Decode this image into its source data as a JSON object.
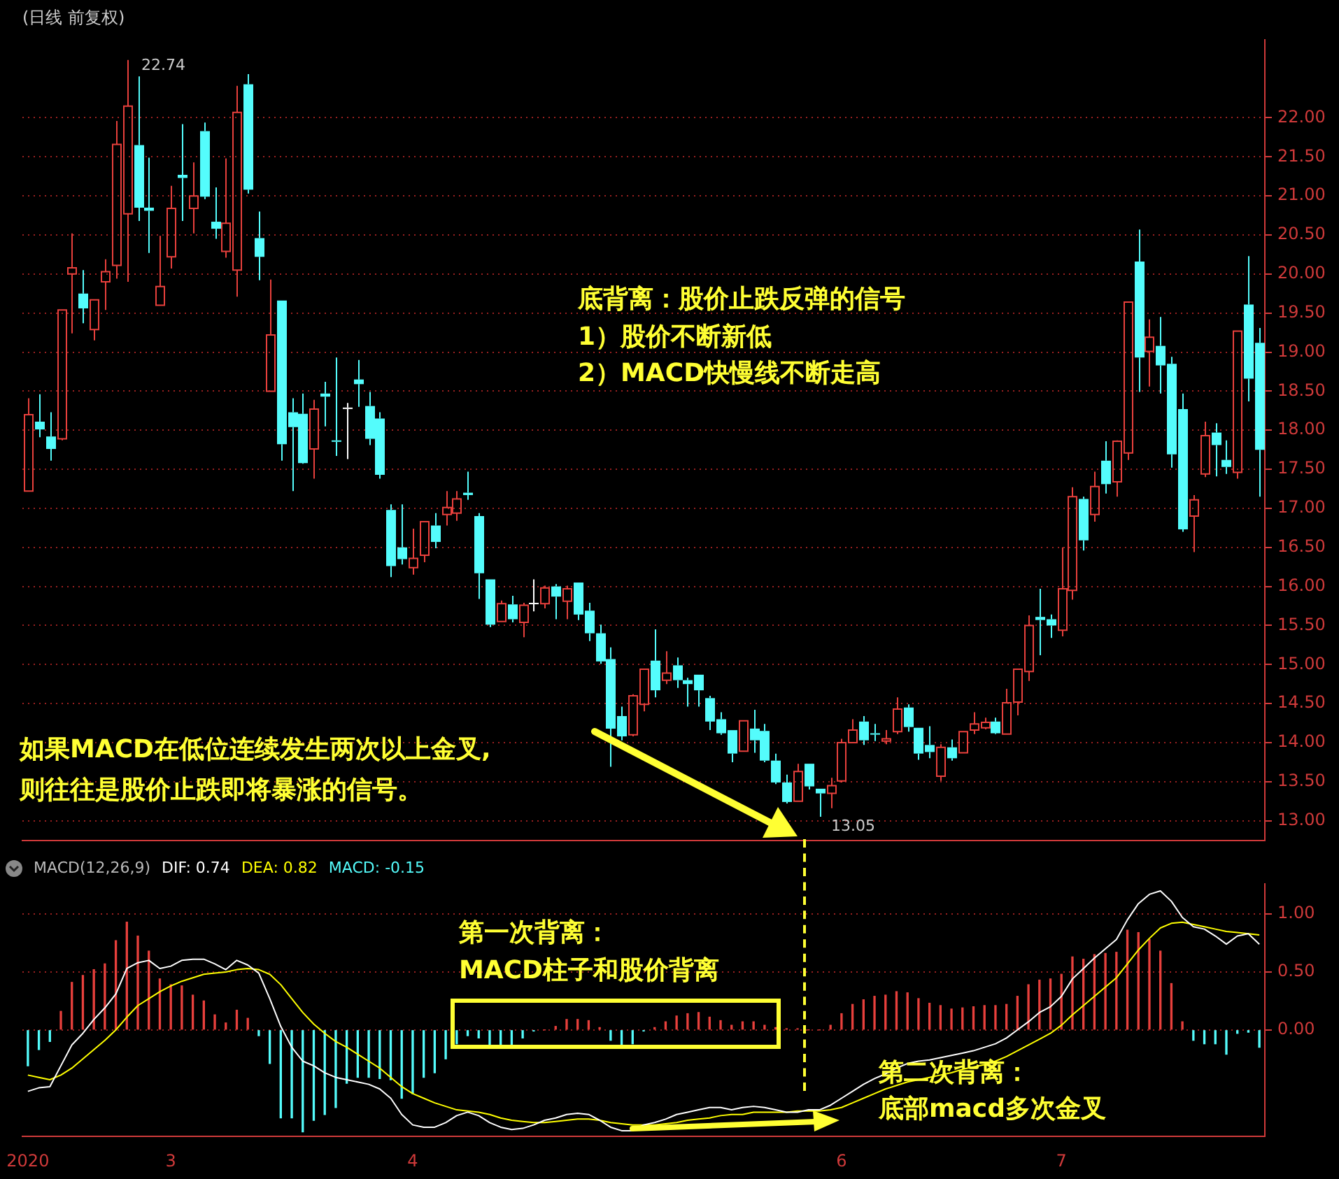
{
  "chart_data": [
    {
      "type": "candlestick",
      "title": "(日线 前复权)",
      "categories": [
        "2020",
        null,
        null,
        null,
        null,
        null,
        null,
        null,
        null,
        null,
        null,
        null,
        null,
        "3",
        null,
        null,
        null,
        null,
        null,
        null,
        null,
        null,
        null,
        null,
        null,
        null,
        null,
        null,
        null,
        null,
        null,
        null,
        null,
        null,
        null,
        "4",
        null,
        null,
        null,
        null,
        null,
        null,
        null,
        null,
        null,
        null,
        null,
        null,
        null,
        null,
        null,
        null,
        null,
        null,
        null,
        null,
        null,
        null,
        null,
        null,
        null,
        null,
        null,
        null,
        null,
        null,
        null,
        null,
        null,
        null,
        null,
        null,
        null,
        null,
        "6",
        null,
        null,
        null,
        null,
        null,
        null,
        null,
        null,
        null,
        null,
        null,
        null,
        null,
        null,
        null,
        null,
        null,
        null,
        null,
        "7",
        null,
        null,
        null,
        null,
        null,
        null,
        null,
        null,
        null,
        null,
        null,
        null,
        null,
        null,
        null,
        null,
        null,
        null
      ],
      "ohlc": [
        [
          17.22,
          18.41,
          17.22,
          18.2
        ],
        [
          18.11,
          18.46,
          17.91,
          18.01
        ],
        [
          17.92,
          18.23,
          17.61,
          17.76
        ],
        [
          17.89,
          19.54,
          17.87,
          19.54
        ],
        [
          20.0,
          20.52,
          19.24,
          20.08
        ],
        [
          19.75,
          20.05,
          19.37,
          19.56
        ],
        [
          19.29,
          19.67,
          19.15,
          19.67
        ],
        [
          19.9,
          20.19,
          19.54,
          20.03
        ],
        [
          20.11,
          21.96,
          19.94,
          21.66
        ],
        [
          20.77,
          22.74,
          19.9,
          22.15
        ],
        [
          21.65,
          22.53,
          20.68,
          20.85
        ],
        [
          20.85,
          21.49,
          20.27,
          20.81
        ],
        [
          19.6,
          20.49,
          19.6,
          19.84
        ],
        [
          20.22,
          21.13,
          20.07,
          20.84
        ],
        [
          21.27,
          21.92,
          20.68,
          21.23
        ],
        [
          20.84,
          21.43,
          20.52,
          21.0
        ],
        [
          21.83,
          21.94,
          20.96,
          20.99
        ],
        [
          20.67,
          21.11,
          20.45,
          20.58
        ],
        [
          20.29,
          21.48,
          20.21,
          20.65
        ],
        [
          20.05,
          22.41,
          19.71,
          22.07
        ],
        [
          22.43,
          22.56,
          21.03,
          21.08
        ],
        [
          20.46,
          20.8,
          19.92,
          20.22
        ],
        [
          18.5,
          19.93,
          18.5,
          19.22
        ],
        [
          19.66,
          19.66,
          17.61,
          17.82
        ],
        [
          18.23,
          18.41,
          17.22,
          18.04
        ],
        [
          18.21,
          18.47,
          17.57,
          17.58
        ],
        [
          17.76,
          18.39,
          17.38,
          18.27
        ],
        [
          18.47,
          18.62,
          18.05,
          18.43
        ],
        [
          17.87,
          18.93,
          17.67,
          17.86
        ],
        [
          18.29,
          18.35,
          17.63,
          18.29
        ],
        [
          18.65,
          18.9,
          18.3,
          18.59
        ],
        [
          18.31,
          18.49,
          17.81,
          17.89
        ],
        [
          18.15,
          18.23,
          17.38,
          17.43
        ],
        [
          16.98,
          17.05,
          16.12,
          16.26
        ],
        [
          16.5,
          17.05,
          16.28,
          16.35
        ],
        [
          16.24,
          16.74,
          16.15,
          16.36
        ],
        [
          16.4,
          16.83,
          16.31,
          16.83
        ],
        [
          16.78,
          16.94,
          16.49,
          16.57
        ],
        [
          16.92,
          17.22,
          16.78,
          17.01
        ],
        [
          16.94,
          17.22,
          16.84,
          17.12
        ],
        [
          17.2,
          17.47,
          17.11,
          17.17
        ],
        [
          16.9,
          16.94,
          15.84,
          16.17
        ],
        [
          16.09,
          16.09,
          15.48,
          15.51
        ],
        [
          15.55,
          15.82,
          15.55,
          15.78
        ],
        [
          15.77,
          15.88,
          15.54,
          15.58
        ],
        [
          15.54,
          15.79,
          15.35,
          15.76
        ],
        [
          15.79,
          16.09,
          15.68,
          15.79
        ],
        [
          15.78,
          16.01,
          15.72,
          15.98
        ],
        [
          16.0,
          16.03,
          15.58,
          15.87
        ],
        [
          15.81,
          16.01,
          15.58,
          15.97
        ],
        [
          16.05,
          16.05,
          15.57,
          15.64
        ],
        [
          15.69,
          15.79,
          15.3,
          15.4
        ],
        [
          15.4,
          15.51,
          15.01,
          15.04
        ],
        [
          15.07,
          15.22,
          13.69,
          14.18
        ],
        [
          14.34,
          14.46,
          14.03,
          14.08
        ],
        [
          14.1,
          14.62,
          14.08,
          14.6
        ],
        [
          14.49,
          14.94,
          14.4,
          14.94
        ],
        [
          15.05,
          15.45,
          14.58,
          14.67
        ],
        [
          14.8,
          15.17,
          14.75,
          14.89
        ],
        [
          14.99,
          15.09,
          14.7,
          14.8
        ],
        [
          14.8,
          14.83,
          14.46,
          14.75
        ],
        [
          14.87,
          14.87,
          14.46,
          14.67
        ],
        [
          14.57,
          14.6,
          14.16,
          14.27
        ],
        [
          14.3,
          14.39,
          14.1,
          14.12
        ],
        [
          14.16,
          14.16,
          13.75,
          13.86
        ],
        [
          13.89,
          14.28,
          13.89,
          14.28
        ],
        [
          14.18,
          14.42,
          13.87,
          14.03
        ],
        [
          14.15,
          14.24,
          13.75,
          13.77
        ],
        [
          13.77,
          13.86,
          13.47,
          13.49
        ],
        [
          13.49,
          13.59,
          13.22,
          13.24
        ],
        [
          13.25,
          13.73,
          13.25,
          13.63
        ],
        [
          13.73,
          13.73,
          13.4,
          13.44
        ],
        [
          13.41,
          13.41,
          13.05,
          13.35
        ],
        [
          13.35,
          13.55,
          13.16,
          13.45
        ],
        [
          13.51,
          14.05,
          13.49,
          14.0
        ],
        [
          14.0,
          14.3,
          13.99,
          14.16
        ],
        [
          14.27,
          14.34,
          13.97,
          14.03
        ],
        [
          14.12,
          14.24,
          14.02,
          14.11
        ],
        [
          14.02,
          14.16,
          13.98,
          14.05
        ],
        [
          14.14,
          14.58,
          14.11,
          14.43
        ],
        [
          14.45,
          14.49,
          14.14,
          14.2
        ],
        [
          14.19,
          14.19,
          13.78,
          13.86
        ],
        [
          13.97,
          14.21,
          13.8,
          13.88
        ],
        [
          13.57,
          13.98,
          13.51,
          13.94
        ],
        [
          13.94,
          14.04,
          13.77,
          13.8
        ],
        [
          13.87,
          14.14,
          13.87,
          14.14
        ],
        [
          14.16,
          14.39,
          14.11,
          14.24
        ],
        [
          14.19,
          14.32,
          14.17,
          14.26
        ],
        [
          14.27,
          14.32,
          14.11,
          14.12
        ],
        [
          14.11,
          14.69,
          14.11,
          14.51
        ],
        [
          14.52,
          14.94,
          14.35,
          14.94
        ],
        [
          14.91,
          15.63,
          14.79,
          15.5
        ],
        [
          15.61,
          15.97,
          15.12,
          15.57
        ],
        [
          15.58,
          15.64,
          15.34,
          15.5
        ],
        [
          15.44,
          16.5,
          15.36,
          15.97
        ],
        [
          15.95,
          17.27,
          15.83,
          17.15
        ],
        [
          17.12,
          17.15,
          16.46,
          16.59
        ],
        [
          16.92,
          17.47,
          16.83,
          17.28
        ],
        [
          17.61,
          17.86,
          17.19,
          17.31
        ],
        [
          17.34,
          17.87,
          17.15,
          17.86
        ],
        [
          17.71,
          19.64,
          17.62,
          19.64
        ],
        [
          20.16,
          20.57,
          18.49,
          18.93
        ],
        [
          19.01,
          19.42,
          18.56,
          19.19
        ],
        [
          19.08,
          19.45,
          18.47,
          18.83
        ],
        [
          18.85,
          18.94,
          17.52,
          17.69
        ],
        [
          18.27,
          18.47,
          16.7,
          16.73
        ],
        [
          16.9,
          17.17,
          16.44,
          17.11
        ],
        [
          17.44,
          18.11,
          17.4,
          17.93
        ],
        [
          17.97,
          18.09,
          17.41,
          17.81
        ],
        [
          17.62,
          17.87,
          17.44,
          17.53
        ],
        [
          17.46,
          19.27,
          17.38,
          19.27
        ],
        [
          19.61,
          20.23,
          18.37,
          18.66
        ],
        [
          19.12,
          19.31,
          17.15,
          17.75
        ]
      ],
      "colors": [
        "#e8403c",
        "#54fcfc",
        "#54fcfc",
        "#e8403c",
        "#e8403c",
        "#54fcfc",
        "#e8403c",
        "#e8403c",
        "#e8403c",
        "#e8403c",
        "#54fcfc",
        "#54fcfc",
        "#e8403c",
        "#e8403c",
        "#54fcfc",
        "#e8403c",
        "#54fcfc",
        "#54fcfc",
        "#e8403c",
        "#e8403c",
        "#54fcfc",
        "#54fcfc",
        "#e8403c",
        "#54fcfc",
        "#54fcfc",
        "#54fcfc",
        "#e8403c",
        "#54fcfc",
        "#54fcfc",
        "#ffffff",
        "#54fcfc",
        "#54fcfc",
        "#54fcfc",
        "#54fcfc",
        "#54fcfc",
        "#e8403c",
        "#e8403c",
        "#54fcfc",
        "#e8403c",
        "#e8403c",
        "#54fcfc",
        "#54fcfc",
        "#54fcfc",
        "#e8403c",
        "#54fcfc",
        "#e8403c",
        "#ffffff",
        "#e8403c",
        "#54fcfc",
        "#e8403c",
        "#54fcfc",
        "#54fcfc",
        "#54fcfc",
        "#54fcfc",
        "#54fcfc",
        "#e8403c",
        "#e8403c",
        "#54fcfc",
        "#e8403c",
        "#54fcfc",
        "#54fcfc",
        "#54fcfc",
        "#54fcfc",
        "#54fcfc",
        "#54fcfc",
        "#e8403c",
        "#54fcfc",
        "#54fcfc",
        "#54fcfc",
        "#54fcfc",
        "#e8403c",
        "#54fcfc",
        "#54fcfc",
        "#e8403c",
        "#e8403c",
        "#e8403c",
        "#54fcfc",
        "#54fcfc",
        "#e8403c",
        "#e8403c",
        "#54fcfc",
        "#54fcfc",
        "#54fcfc",
        "#e8403c",
        "#54fcfc",
        "#e8403c",
        "#e8403c",
        "#e8403c",
        "#54fcfc",
        "#e8403c",
        "#e8403c",
        "#e8403c",
        "#54fcfc",
        "#54fcfc",
        "#e8403c",
        "#e8403c",
        "#54fcfc",
        "#e8403c",
        "#54fcfc",
        "#e8403c",
        "#e8403c",
        "#54fcfc",
        "#e8403c",
        "#54fcfc",
        "#54fcfc",
        "#54fcfc",
        "#e8403c",
        "#e8403c",
        "#54fcfc",
        "#54fcfc",
        "#e8403c",
        "#54fcfc",
        "#54fcfc"
      ],
      "ylim": [
        12.75,
        23.0
      ],
      "yticks": [
        {
          "value": 13,
          "label": "13.00"
        },
        {
          "value": 13.5,
          "label": "13.50"
        },
        {
          "value": 14,
          "label": "14.00"
        },
        {
          "value": 14.5,
          "label": "14.50"
        },
        {
          "value": 15,
          "label": "15.00"
        },
        {
          "value": 15.5,
          "label": "15.50"
        },
        {
          "value": 16,
          "label": "16.00"
        },
        {
          "value": 16.5,
          "label": "16.50"
        },
        {
          "value": 17,
          "label": "17.00"
        },
        {
          "value": 17.5,
          "label": "17.50"
        },
        {
          "value": 18,
          "label": "18.00"
        },
        {
          "value": 18.5,
          "label": "18.50"
        },
        {
          "value": 19,
          "label": "19.00"
        },
        {
          "value": 19.5,
          "label": "19.50"
        },
        {
          "value": 20,
          "label": "20.00"
        },
        {
          "value": 20.5,
          "label": "20.50"
        },
        {
          "value": 21,
          "label": "21.00"
        },
        {
          "value": 21.5,
          "label": "21.50"
        },
        {
          "value": 22,
          "label": "22.00"
        }
      ],
      "grid": "y",
      "tick_labels": "y",
      "annotations": [
        "底背离：股价止跌反弹的信号",
        "1）股价不断新低",
        "2）MACD快慢线不断走高",
        "如果MACD在低位连续发生两次以上金叉,",
        "则往往是股价止跌即将暴涨的信号。",
        "22.74",
        "13.05"
      ]
    },
    {
      "type": "line",
      "legend_title": "MACD(12,26,9)",
      "legend": "top left",
      "categories": [
        "2020",
        null,
        null,
        null,
        null,
        null,
        null,
        null,
        null,
        null,
        null,
        null,
        null,
        "3",
        null,
        null,
        null,
        null,
        null,
        null,
        null,
        null,
        null,
        null,
        null,
        null,
        null,
        null,
        null,
        null,
        null,
        null,
        null,
        null,
        null,
        "4",
        null,
        null,
        null,
        null,
        null,
        null,
        null,
        null,
        null,
        null,
        null,
        null,
        null,
        null,
        null,
        null,
        null,
        null,
        null,
        null,
        null,
        null,
        null,
        null,
        null,
        null,
        null,
        null,
        null,
        null,
        null,
        null,
        null,
        null,
        null,
        null,
        null,
        null,
        "6",
        null,
        null,
        null,
        null,
        null,
        null,
        null,
        null,
        null,
        null,
        null,
        null,
        null,
        null,
        null,
        null,
        null,
        null,
        null,
        "7",
        null,
        null,
        null,
        null,
        null,
        null,
        null,
        null,
        null,
        null,
        null,
        null,
        null,
        null,
        null,
        null,
        null,
        null
      ],
      "series": [
        {
          "name": "DIF: 0.74",
          "type": "line",
          "color": "#ffffff",
          "values": [
            -0.53,
            -0.5,
            -0.49,
            -0.31,
            -0.13,
            -0.03,
            0.09,
            0.19,
            0.31,
            0.53,
            0.58,
            0.6,
            0.53,
            0.55,
            0.6,
            0.61,
            0.61,
            0.57,
            0.52,
            0.6,
            0.56,
            0.49,
            0.27,
            0.03,
            -0.15,
            -0.27,
            -0.31,
            -0.37,
            -0.41,
            -0.43,
            -0.45,
            -0.47,
            -0.51,
            -0.59,
            -0.73,
            -0.82,
            -0.84,
            -0.84,
            -0.8,
            -0.74,
            -0.71,
            -0.74,
            -0.8,
            -0.84,
            -0.86,
            -0.85,
            -0.82,
            -0.78,
            -0.76,
            -0.73,
            -0.72,
            -0.73,
            -0.78,
            -0.84,
            -0.87,
            -0.87,
            -0.82,
            -0.8,
            -0.77,
            -0.73,
            -0.71,
            -0.69,
            -0.67,
            -0.67,
            -0.69,
            -0.67,
            -0.66,
            -0.67,
            -0.69,
            -0.71,
            -0.71,
            -0.69,
            -0.69,
            -0.65,
            -0.59,
            -0.53,
            -0.47,
            -0.42,
            -0.38,
            -0.33,
            -0.29,
            -0.27,
            -0.26,
            -0.24,
            -0.22,
            -0.2,
            -0.18,
            -0.15,
            -0.12,
            -0.07,
            0.0,
            0.07,
            0.15,
            0.2,
            0.29,
            0.44,
            0.53,
            0.62,
            0.7,
            0.78,
            0.95,
            1.09,
            1.17,
            1.2,
            1.11,
            0.97,
            0.89,
            0.87,
            0.81,
            0.74,
            0.81,
            0.83,
            0.74
          ]
        },
        {
          "name": "DEA: 0.82",
          "type": "line",
          "color": "#ffff00",
          "values": [
            -0.39,
            -0.41,
            -0.43,
            -0.39,
            -0.33,
            -0.25,
            -0.17,
            -0.09,
            0.0,
            0.11,
            0.21,
            0.27,
            0.33,
            0.38,
            0.42,
            0.45,
            0.48,
            0.49,
            0.5,
            0.52,
            0.53,
            0.52,
            0.48,
            0.39,
            0.27,
            0.15,
            0.05,
            -0.03,
            -0.1,
            -0.15,
            -0.21,
            -0.27,
            -0.33,
            -0.41,
            -0.49,
            -0.55,
            -0.59,
            -0.63,
            -0.66,
            -0.69,
            -0.7,
            -0.71,
            -0.73,
            -0.76,
            -0.78,
            -0.79,
            -0.8,
            -0.8,
            -0.79,
            -0.78,
            -0.77,
            -0.77,
            -0.78,
            -0.8,
            -0.81,
            -0.82,
            -0.82,
            -0.82,
            -0.81,
            -0.8,
            -0.78,
            -0.77,
            -0.76,
            -0.74,
            -0.73,
            -0.73,
            -0.71,
            -0.71,
            -0.71,
            -0.71,
            -0.7,
            -0.7,
            -0.7,
            -0.69,
            -0.67,
            -0.63,
            -0.59,
            -0.55,
            -0.51,
            -0.48,
            -0.45,
            -0.43,
            -0.41,
            -0.39,
            -0.37,
            -0.34,
            -0.32,
            -0.3,
            -0.27,
            -0.23,
            -0.18,
            -0.13,
            -0.08,
            -0.03,
            0.04,
            0.13,
            0.21,
            0.29,
            0.37,
            0.45,
            0.57,
            0.69,
            0.79,
            0.88,
            0.92,
            0.93,
            0.91,
            0.89,
            0.87,
            0.85,
            0.84,
            0.83,
            0.82
          ]
        },
        {
          "name": "MACD: -0.15",
          "type": "bar",
          "values": [
            -0.31,
            -0.17,
            -0.1,
            0.16,
            0.41,
            0.47,
            0.52,
            0.57,
            0.77,
            0.93,
            0.81,
            0.68,
            0.44,
            0.39,
            0.38,
            0.3,
            0.25,
            0.13,
            0.06,
            0.17,
            0.1,
            -0.05,
            -0.29,
            -0.76,
            -0.76,
            -0.88,
            -0.78,
            -0.73,
            -0.67,
            -0.46,
            -0.41,
            -0.41,
            -0.42,
            -0.43,
            -0.59,
            -0.55,
            -0.41,
            -0.37,
            -0.25,
            -0.12,
            -0.05,
            -0.07,
            -0.15,
            -0.15,
            -0.15,
            -0.07,
            -0.01,
            0.0,
            0.03,
            0.09,
            0.09,
            0.08,
            0.02,
            -0.09,
            -0.15,
            -0.12,
            -0.01,
            0.02,
            0.07,
            0.12,
            0.14,
            0.15,
            0.11,
            0.08,
            0.04,
            0.07,
            0.07,
            0.04,
            0.02,
            0.01,
            0.01,
            0.0,
            0.0,
            0.04,
            0.14,
            0.22,
            0.26,
            0.29,
            0.3,
            0.33,
            0.32,
            0.27,
            0.23,
            0.21,
            0.18,
            0.19,
            0.2,
            0.21,
            0.21,
            0.22,
            0.29,
            0.39,
            0.43,
            0.44,
            0.48,
            0.63,
            0.61,
            0.65,
            0.66,
            0.67,
            0.86,
            0.84,
            0.78,
            0.68,
            0.4,
            0.07,
            -0.09,
            -0.12,
            -0.12,
            -0.21,
            -0.03,
            -0.02,
            -0.15
          ],
          "colors": [
            "#54fcfc",
            "#54fcfc",
            "#54fcfc",
            "#e8403c",
            "#e8403c",
            "#e8403c",
            "#e8403c",
            "#e8403c",
            "#e8403c",
            "#e8403c",
            "#e8403c",
            "#e8403c",
            "#e8403c",
            "#e8403c",
            "#e8403c",
            "#e8403c",
            "#e8403c",
            "#e8403c",
            "#e8403c",
            "#e8403c",
            "#e8403c",
            "#54fcfc",
            "#54fcfc",
            "#54fcfc",
            "#54fcfc",
            "#54fcfc",
            "#54fcfc",
            "#54fcfc",
            "#54fcfc",
            "#54fcfc",
            "#54fcfc",
            "#54fcfc",
            "#54fcfc",
            "#54fcfc",
            "#54fcfc",
            "#54fcfc",
            "#54fcfc",
            "#54fcfc",
            "#54fcfc",
            "#54fcfc",
            "#54fcfc",
            "#54fcfc",
            "#54fcfc",
            "#54fcfc",
            "#54fcfc",
            "#54fcfc",
            "#54fcfc",
            "#e8403c",
            "#e8403c",
            "#e8403c",
            "#e8403c",
            "#e8403c",
            "#e8403c",
            "#54fcfc",
            "#54fcfc",
            "#54fcfc",
            "#54fcfc",
            "#e8403c",
            "#e8403c",
            "#e8403c",
            "#e8403c",
            "#e8403c",
            "#e8403c",
            "#e8403c",
            "#e8403c",
            "#e8403c",
            "#e8403c",
            "#e8403c",
            "#e8403c",
            "#e8403c",
            "#e8403c",
            "#e8403c",
            "#e8403c",
            "#e8403c",
            "#e8403c",
            "#e8403c",
            "#e8403c",
            "#e8403c",
            "#e8403c",
            "#e8403c",
            "#e8403c",
            "#e8403c",
            "#e8403c",
            "#e8403c",
            "#e8403c",
            "#e8403c",
            "#e8403c",
            "#e8403c",
            "#e8403c",
            "#e8403c",
            "#e8403c",
            "#e8403c",
            "#e8403c",
            "#e8403c",
            "#e8403c",
            "#e8403c",
            "#e8403c",
            "#e8403c",
            "#e8403c",
            "#e8403c",
            "#e8403c",
            "#e8403c",
            "#e8403c",
            "#e8403c",
            "#e8403c",
            "#e8403c",
            "#54fcfc",
            "#54fcfc",
            "#54fcfc",
            "#54fcfc",
            "#54fcfc",
            "#54fcfc",
            "#54fcfc"
          ]
        }
      ],
      "ylim": [
        -0.92,
        1.26
      ],
      "yticks": [
        {
          "value": 0,
          "label": "0.00"
        },
        {
          "value": 0.5,
          "label": "0.50"
        },
        {
          "value": 1,
          "label": "1.00"
        }
      ],
      "grid": "y",
      "annotations": [
        "第一次背离：",
        "MACD柱子和股价背离",
        "第二次背离：",
        "底部macd多次金叉"
      ]
    }
  ]
}
